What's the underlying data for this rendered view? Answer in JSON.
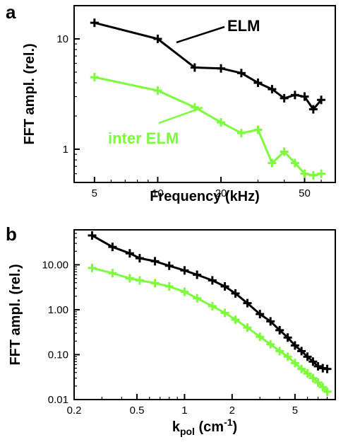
{
  "colors": {
    "elm": "#000000",
    "inter_elm": "#7cfc3c",
    "axes": "#000000"
  },
  "chart_data": [
    {
      "type": "line",
      "panel_label": "a",
      "title": "",
      "xlabel": "Frequency (kHz)",
      "ylabel": "FFT ampl. (rel.)",
      "xscale": "log",
      "yscale": "log",
      "xlim": [
        4,
        70
      ],
      "ylim": [
        0.5,
        20
      ],
      "xticks": [
        5,
        10,
        20,
        50
      ],
      "xtick_labels": [
        "5",
        "10",
        "20",
        "50"
      ],
      "yticks": [
        1,
        10
      ],
      "ytick_labels": [
        "1",
        "10"
      ],
      "annotations": [
        {
          "text": "ELM",
          "color": "#000000"
        },
        {
          "text": "inter ELM",
          "color": "#7cfc3c"
        }
      ],
      "series": [
        {
          "name": "ELM",
          "x": [
            5,
            10,
            15,
            20,
            25,
            30,
            35,
            40,
            45,
            50,
            55,
            60
          ],
          "y": [
            14,
            10,
            5.5,
            5.4,
            4.9,
            4.0,
            3.5,
            2.9,
            3.1,
            3.0,
            2.3,
            2.8
          ]
        },
        {
          "name": "inter ELM",
          "x": [
            5,
            10,
            15,
            20,
            25,
            30,
            35,
            40,
            45,
            50,
            55,
            60
          ],
          "y": [
            4.5,
            3.4,
            2.4,
            1.75,
            1.4,
            1.5,
            0.75,
            0.95,
            0.75,
            0.6,
            0.58,
            0.6
          ]
        }
      ]
    },
    {
      "type": "line",
      "panel_label": "b",
      "title": "",
      "xlabel_main": "k",
      "xlabel_sub": "pol",
      "xlabel_unit_open": " (cm",
      "xlabel_sup": "-1",
      "xlabel_unit_close": ")",
      "ylabel": "FFT ampl. (rel.)",
      "xscale": "log",
      "yscale": "log",
      "xlim": [
        0.2,
        9
      ],
      "ylim": [
        0.01,
        60
      ],
      "xticks": [
        0.2,
        0.5,
        1,
        2,
        5
      ],
      "xtick_labels": [
        "0.2",
        "0.5",
        "1",
        "2",
        "5"
      ],
      "yticks": [
        0.01,
        0.1,
        1,
        10
      ],
      "ytick_labels": [
        "0.01",
        "0.10",
        "1.00",
        "10.00"
      ],
      "series": [
        {
          "name": "ELM",
          "x": [
            0.26,
            0.35,
            0.45,
            0.52,
            0.65,
            0.8,
            1.0,
            1.2,
            1.5,
            1.8,
            2.1,
            2.5,
            3.0,
            3.5,
            4.0,
            4.5,
            5.0,
            5.5,
            6.0,
            6.5,
            7.0,
            7.5,
            8.0
          ],
          "y": [
            45,
            25,
            18,
            14,
            12,
            9.5,
            7.5,
            6.0,
            4.5,
            3.3,
            2.3,
            1.4,
            0.8,
            0.55,
            0.35,
            0.24,
            0.16,
            0.12,
            0.09,
            0.07,
            0.055,
            0.05,
            0.048
          ]
        },
        {
          "name": "inter ELM",
          "x": [
            0.26,
            0.35,
            0.45,
            0.52,
            0.65,
            0.8,
            1.0,
            1.2,
            1.5,
            1.8,
            2.1,
            2.5,
            3.0,
            3.5,
            4.0,
            4.5,
            5.0,
            5.5,
            6.0,
            6.5,
            7.0,
            7.5,
            8.0
          ],
          "y": [
            8.5,
            6.5,
            5.0,
            4.5,
            3.9,
            3.3,
            2.5,
            1.8,
            1.2,
            0.85,
            0.6,
            0.4,
            0.25,
            0.17,
            0.12,
            0.09,
            0.065,
            0.048,
            0.038,
            0.03,
            0.024,
            0.019,
            0.015
          ]
        }
      ]
    }
  ]
}
